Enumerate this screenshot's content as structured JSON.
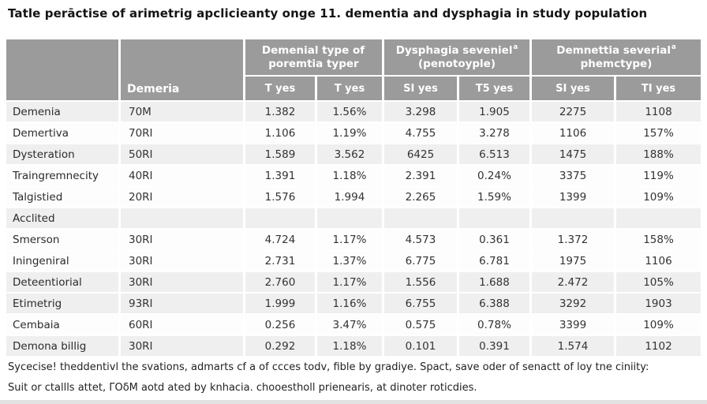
{
  "title": "Tatle perāctise of arimetrig apclicieanty onge 11. dementia and dysphagia in study population",
  "table": {
    "corner_label": "",
    "col2_header": "Demeria",
    "groups": [
      {
        "line1": "Demenial type of",
        "sup": "",
        "line2": "poremtia typer"
      },
      {
        "line1": "Dysphagia seveniel",
        "sup": "a",
        "line2": "(penotoyple)"
      },
      {
        "line1": "Demnettia severial",
        "sup": "a",
        "line2": "phemctype)"
      }
    ],
    "subheaders": [
      "T yes",
      "T yes",
      "SI yes",
      "T5 yes",
      "SI yes",
      "TI yes"
    ],
    "rows": [
      {
        "label": "Demenia",
        "cells": [
          "70M",
          "1.382",
          "1.56%",
          "3.298",
          "1.905",
          "2275",
          "1108"
        ]
      },
      {
        "label": "Demertiva",
        "cells": [
          "70RI",
          "1.106",
          "1.19%",
          "4.755",
          "3.278",
          "1106",
          "157%"
        ]
      },
      {
        "label": "Dysteration",
        "cells": [
          "50RI",
          "1.589",
          "3.562",
          "6425",
          "6.513",
          "1475",
          "188%"
        ]
      },
      {
        "label": "Traingremnecity",
        "cells": [
          "40RI",
          "1.391",
          "1.18%",
          "2.391",
          "0.24%",
          "3375",
          "119%"
        ]
      },
      {
        "label": "Talgistied",
        "cells": [
          "20RI",
          "1.576",
          "1.994",
          "2.265",
          "1.59%",
          "1399",
          "109%"
        ]
      },
      {
        "label": "Acclited",
        "cells": [
          "",
          "",
          "",
          "",
          "",
          "",
          ""
        ]
      },
      {
        "label": "Smerson",
        "cells": [
          "30RI",
          "4.724",
          "1.17%",
          "4.573",
          "0.361",
          "1.372",
          "158%"
        ]
      },
      {
        "label": "Iningeniral",
        "cells": [
          "30RI",
          "2.731",
          "1.37%",
          "6.775",
          "6.781",
          "1975",
          "1106"
        ]
      },
      {
        "label": "Deteentiorial",
        "cells": [
          "30RI",
          "2.760",
          "1.17%",
          "1.556",
          "1.688",
          "2.472",
          "105%"
        ]
      },
      {
        "label": "Etimetrig",
        "cells": [
          "93RI",
          "1.999",
          "1.16%",
          "6.755",
          "6.388",
          "3292",
          "1903"
        ]
      },
      {
        "label": "Cembaia",
        "cells": [
          "60RI",
          "0.256",
          "3.47%",
          "0.575",
          "0.78%",
          "3399",
          "109%"
        ]
      },
      {
        "label": "Demona billig",
        "cells": [
          "30RI",
          "0.292",
          "1.18%",
          "0.101",
          "0.391",
          "1.574",
          "1102"
        ]
      }
    ]
  },
  "footnotes": [
    "Sycecise! theddentivl the svations, admarts cf a of ccces todv, fible by gradiye. Spact, save oder of senactt of loy tne ciniity:",
    "Suit or ctallls attet, ΓΟδM aotd ated by knhacia. chooestholl prienearis, at dinoter roticdies."
  ]
}
